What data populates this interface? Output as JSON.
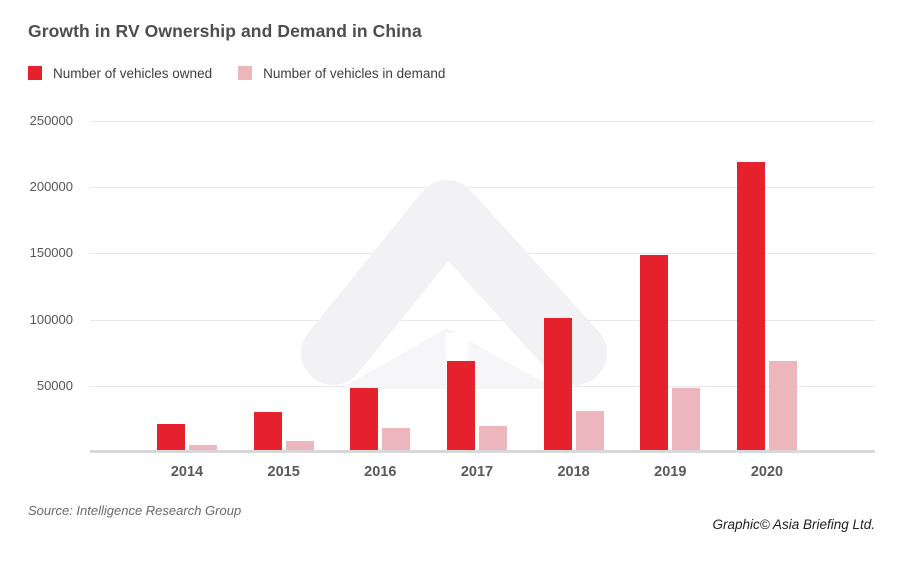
{
  "title": "Growth in RV Ownership and Demand in China",
  "legend": [
    {
      "label": "Number of vehicles owned",
      "color": "#e6212e"
    },
    {
      "label": "Number of vehicles in demand",
      "color": "#ecb6bc"
    }
  ],
  "source": "Source: Intelligence Research Group",
  "credit": "Graphic© Asia Briefing Ltd.",
  "colors": {
    "owned_bar": "#e6212e",
    "demand_bar": "#ecb6bc",
    "gridline": "#e8e8ea",
    "baseline": "#d8d8da",
    "title_text": "#4d4d52",
    "axis_text": "#58595b",
    "watermark": "#f2f2f5"
  },
  "chart_data": {
    "type": "bar",
    "categories": [
      "2014",
      "2015",
      "2016",
      "2017",
      "2018",
      "2019",
      "2020"
    ],
    "series": [
      {
        "name": "Number of vehicles owned",
        "color": "#e6212e",
        "values": [
          21000,
          30000,
          48000,
          69000,
          101000,
          149000,
          219000
        ]
      },
      {
        "name": "Number of vehicles in demand",
        "color": "#ecb6bc",
        "values": [
          5000,
          8000,
          18000,
          20000,
          31000,
          48000,
          69000
        ]
      }
    ],
    "ylim": [
      0,
      250000
    ],
    "yticks": [
      50000,
      100000,
      150000,
      200000,
      250000
    ],
    "grid": "horizontal",
    "legend_position": "top-left",
    "watermark": "asia-briefing-arrow-logo"
  }
}
